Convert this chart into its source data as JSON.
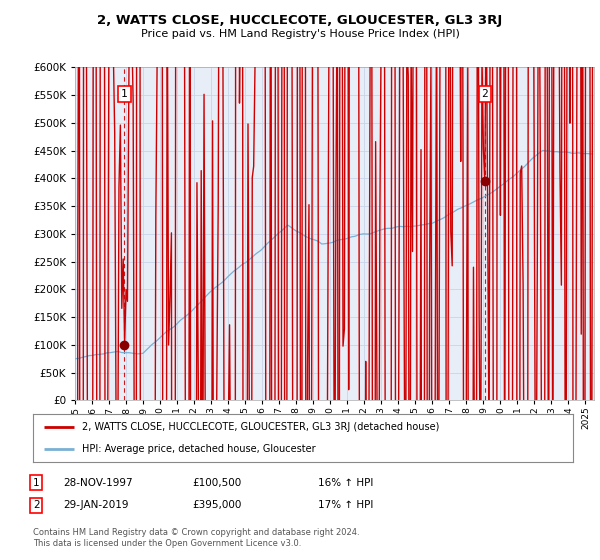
{
  "title": "2, WATTS CLOSE, HUCCLECOTE, GLOUCESTER, GL3 3RJ",
  "subtitle": "Price paid vs. HM Land Registry's House Price Index (HPI)",
  "sale1_x": 1997.9,
  "sale1_price": 100500,
  "sale1_label": "1",
  "sale2_x": 2019.08,
  "sale2_price": 395000,
  "sale2_label": "2",
  "line_color_property": "#cc0000",
  "line_color_hpi": "#7ab0d4",
  "dashed_line_color": "#cc0000",
  "marker_color": "#880000",
  "legend_label_property": "2, WATTS CLOSE, HUCCLECOTE, GLOUCESTER, GL3 3RJ (detached house)",
  "legend_label_hpi": "HPI: Average price, detached house, Gloucester",
  "table_row1": [
    "1",
    "28-NOV-1997",
    "£100,500",
    "16% ↑ HPI"
  ],
  "table_row2": [
    "2",
    "29-JAN-2019",
    "£395,000",
    "17% ↑ HPI"
  ],
  "footer": "Contains HM Land Registry data © Crown copyright and database right 2024.\nThis data is licensed under the Open Government Licence v3.0.",
  "ylim": [
    0,
    600000
  ],
  "ytick_max": 600000,
  "ytick_step": 50000,
  "xmin": 1995,
  "xmax": 2025.5,
  "background_color": "#ffffff",
  "grid_color": "#c8d4e8",
  "plot_bg": "#e8eef8"
}
